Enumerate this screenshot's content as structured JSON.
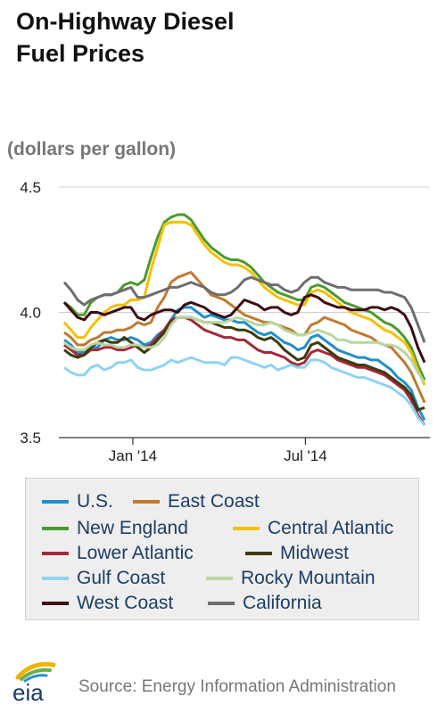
{
  "title_line1": "On-Highway Diesel",
  "title_line2": "Fuel Prices",
  "unit_label": "(dollars per gallon)",
  "source": "Source: Energy Information Administration",
  "logo_text": "eia",
  "colors": {
    "U.S.": "#1f8fc9",
    "East Coast": "#c07a30",
    "New England": "#4a9a2e",
    "Central Atlantic": "#f5c000",
    "Lower Atlantic": "#a5283a",
    "Midwest": "#3e3a0c",
    "Gulf Coast": "#8fd3f0",
    "Rocky Mountain": "#b9d6a0",
    "West Coast": "#3d0b12",
    "California": "#6e6e6e"
  },
  "chart_data": {
    "type": "line",
    "ylim": [
      3.5,
      4.5
    ],
    "yticks": [
      "3.5",
      "4.0",
      "4.5"
    ],
    "xtick_labels": [
      "Jan '14",
      "Jul '14"
    ],
    "grid": "horizontal",
    "legend_position": "bottom",
    "x": [
      "2013-10-21",
      "2013-10-28",
      "2013-11-04",
      "2013-11-11",
      "2013-11-18",
      "2013-11-25",
      "2013-12-02",
      "2013-12-09",
      "2013-12-16",
      "2013-12-23",
      "2013-12-30",
      "2014-01-06",
      "2014-01-13",
      "2014-01-20",
      "2014-01-27",
      "2014-02-03",
      "2014-02-10",
      "2014-02-17",
      "2014-02-24",
      "2014-03-03",
      "2014-03-10",
      "2014-03-17",
      "2014-03-24",
      "2014-03-31",
      "2014-04-07",
      "2014-04-14",
      "2014-04-21",
      "2014-04-28",
      "2014-05-05",
      "2014-05-12",
      "2014-05-19",
      "2014-05-26",
      "2014-06-02",
      "2014-06-09",
      "2014-06-16",
      "2014-06-23",
      "2014-06-30",
      "2014-07-07",
      "2014-07-14",
      "2014-07-21",
      "2014-07-28",
      "2014-08-04",
      "2014-08-11",
      "2014-08-18",
      "2014-08-25",
      "2014-09-01",
      "2014-09-08",
      "2014-09-15",
      "2014-09-22",
      "2014-09-29",
      "2014-10-06",
      "2014-10-13",
      "2014-10-20",
      "2014-10-27",
      "2014-11-03"
    ],
    "series": [
      {
        "name": "U.S.",
        "values": [
          3.89,
          3.87,
          3.84,
          3.84,
          3.86,
          3.86,
          3.89,
          3.9,
          3.89,
          3.89,
          3.9,
          3.89,
          3.87,
          3.88,
          3.91,
          3.93,
          3.97,
          4.01,
          4.02,
          4.02,
          4.0,
          3.98,
          3.99,
          3.98,
          3.97,
          3.97,
          3.96,
          3.96,
          3.94,
          3.92,
          3.91,
          3.92,
          3.9,
          3.88,
          3.87,
          3.85,
          3.86,
          3.9,
          3.91,
          3.89,
          3.87,
          3.85,
          3.84,
          3.83,
          3.82,
          3.82,
          3.81,
          3.81,
          3.79,
          3.77,
          3.74,
          3.72,
          3.69,
          3.62,
          3.57
        ]
      },
      {
        "name": "East Coast",
        "values": [
          3.92,
          3.9,
          3.87,
          3.87,
          3.89,
          3.9,
          3.92,
          3.92,
          3.93,
          3.93,
          3.94,
          3.96,
          3.95,
          3.96,
          4.02,
          4.06,
          4.12,
          4.14,
          4.15,
          4.16,
          4.13,
          4.1,
          4.07,
          4.06,
          4.05,
          4.03,
          4.01,
          3.99,
          3.98,
          3.97,
          3.96,
          3.96,
          3.95,
          3.94,
          3.93,
          3.91,
          3.91,
          3.95,
          3.96,
          3.98,
          3.97,
          3.96,
          3.95,
          3.93,
          3.92,
          3.91,
          3.9,
          3.88,
          3.87,
          3.86,
          3.83,
          3.8,
          3.76,
          3.7,
          3.64
        ]
      },
      {
        "name": "New England",
        "values": [
          4.04,
          4.02,
          3.99,
          3.99,
          4.04,
          4.06,
          4.07,
          4.07,
          4.08,
          4.11,
          4.12,
          4.11,
          4.13,
          4.22,
          4.3,
          4.36,
          4.38,
          4.39,
          4.39,
          4.37,
          4.33,
          4.29,
          4.26,
          4.24,
          4.22,
          4.21,
          4.21,
          4.2,
          4.18,
          4.15,
          4.12,
          4.1,
          4.08,
          4.07,
          4.06,
          4.05,
          4.05,
          4.1,
          4.11,
          4.1,
          4.08,
          4.06,
          4.04,
          4.03,
          4.02,
          4.01,
          4.0,
          3.98,
          3.96,
          3.95,
          3.93,
          3.9,
          3.86,
          3.79,
          3.73
        ]
      },
      {
        "name": "Central Atlantic",
        "values": [
          3.96,
          3.93,
          3.9,
          3.9,
          3.94,
          3.97,
          4.0,
          4.02,
          4.03,
          4.03,
          4.05,
          4.05,
          4.06,
          4.17,
          4.26,
          4.35,
          4.36,
          4.36,
          4.36,
          4.35,
          4.31,
          4.27,
          4.24,
          4.22,
          4.2,
          4.19,
          4.19,
          4.18,
          4.16,
          4.13,
          4.1,
          4.08,
          4.06,
          4.05,
          4.04,
          4.03,
          4.03,
          4.08,
          4.09,
          4.08,
          4.06,
          4.04,
          4.02,
          4.0,
          3.99,
          3.98,
          3.97,
          3.95,
          3.93,
          3.92,
          3.9,
          3.88,
          3.84,
          3.77,
          3.71
        ]
      },
      {
        "name": "Lower Atlantic",
        "values": [
          3.87,
          3.85,
          3.83,
          3.83,
          3.85,
          3.85,
          3.86,
          3.86,
          3.85,
          3.85,
          3.86,
          3.87,
          3.86,
          3.87,
          3.9,
          3.93,
          3.97,
          3.98,
          3.98,
          3.97,
          3.95,
          3.93,
          3.92,
          3.91,
          3.9,
          3.9,
          3.89,
          3.89,
          3.87,
          3.85,
          3.84,
          3.84,
          3.83,
          3.82,
          3.8,
          3.79,
          3.8,
          3.84,
          3.85,
          3.84,
          3.83,
          3.81,
          3.8,
          3.79,
          3.78,
          3.78,
          3.77,
          3.76,
          3.75,
          3.73,
          3.71,
          3.69,
          3.65,
          3.59,
          3.55
        ]
      },
      {
        "name": "Midwest",
        "values": [
          3.85,
          3.83,
          3.82,
          3.83,
          3.86,
          3.88,
          3.89,
          3.88,
          3.88,
          3.9,
          3.88,
          3.86,
          3.84,
          3.86,
          3.89,
          3.92,
          3.96,
          3.98,
          3.98,
          3.98,
          3.97,
          3.96,
          3.96,
          3.95,
          3.94,
          3.94,
          3.93,
          3.93,
          3.92,
          3.9,
          3.89,
          3.9,
          3.88,
          3.85,
          3.83,
          3.81,
          3.82,
          3.87,
          3.88,
          3.86,
          3.84,
          3.82,
          3.81,
          3.8,
          3.79,
          3.79,
          3.78,
          3.77,
          3.76,
          3.74,
          3.72,
          3.7,
          3.67,
          3.61,
          3.62
        ]
      },
      {
        "name": "Gulf Coast",
        "values": [
          3.78,
          3.76,
          3.75,
          3.75,
          3.78,
          3.79,
          3.77,
          3.78,
          3.8,
          3.8,
          3.81,
          3.78,
          3.77,
          3.77,
          3.78,
          3.79,
          3.81,
          3.8,
          3.81,
          3.82,
          3.81,
          3.8,
          3.8,
          3.8,
          3.79,
          3.82,
          3.82,
          3.81,
          3.8,
          3.79,
          3.78,
          3.79,
          3.77,
          3.78,
          3.79,
          3.78,
          3.78,
          3.81,
          3.81,
          3.8,
          3.78,
          3.77,
          3.76,
          3.75,
          3.74,
          3.74,
          3.73,
          3.72,
          3.71,
          3.7,
          3.68,
          3.66,
          3.63,
          3.58,
          3.55
        ]
      },
      {
        "name": "Rocky Mountain",
        "values": [
          3.88,
          3.86,
          3.85,
          3.85,
          3.87,
          3.88,
          3.87,
          3.87,
          3.86,
          3.86,
          3.87,
          3.87,
          3.86,
          3.86,
          3.87,
          3.9,
          3.95,
          3.98,
          3.98,
          3.98,
          3.97,
          3.96,
          3.96,
          3.96,
          3.96,
          3.97,
          3.98,
          3.97,
          3.96,
          3.95,
          3.95,
          3.96,
          3.95,
          3.93,
          3.92,
          3.91,
          3.91,
          3.92,
          3.93,
          3.92,
          3.91,
          3.89,
          3.89,
          3.88,
          3.88,
          3.88,
          3.88,
          3.88,
          3.87,
          3.87,
          3.86,
          3.84,
          3.81,
          3.76,
          3.72
        ]
      },
      {
        "name": "West Coast",
        "values": [
          4.04,
          4.01,
          3.98,
          3.97,
          4.0,
          4.0,
          3.99,
          4.0,
          4.01,
          4.02,
          4.02,
          3.98,
          3.97,
          3.99,
          4.0,
          4.01,
          4.01,
          4.0,
          4.03,
          4.04,
          4.03,
          4.02,
          4.0,
          3.99,
          3.98,
          3.99,
          4.02,
          4.05,
          4.04,
          4.03,
          4.01,
          4.02,
          4.02,
          4.0,
          3.99,
          4.0,
          4.06,
          4.07,
          4.06,
          4.04,
          4.03,
          4.02,
          4.02,
          4.01,
          4.01,
          4.01,
          4.02,
          4.02,
          4.01,
          4.02,
          4.01,
          3.99,
          3.94,
          3.86,
          3.8
        ]
      },
      {
        "name": "California",
        "values": [
          4.12,
          4.09,
          4.05,
          4.03,
          4.05,
          4.06,
          4.07,
          4.07,
          4.08,
          4.09,
          4.1,
          4.06,
          4.06,
          4.07,
          4.08,
          4.09,
          4.1,
          4.1,
          4.11,
          4.12,
          4.11,
          4.1,
          4.08,
          4.07,
          4.07,
          4.08,
          4.1,
          4.13,
          4.14,
          4.13,
          4.12,
          4.11,
          4.11,
          4.09,
          4.08,
          4.09,
          4.12,
          4.14,
          4.14,
          4.12,
          4.11,
          4.1,
          4.1,
          4.09,
          4.09,
          4.09,
          4.09,
          4.09,
          4.08,
          4.08,
          4.07,
          4.06,
          4.02,
          3.95,
          3.88
        ]
      }
    ]
  }
}
